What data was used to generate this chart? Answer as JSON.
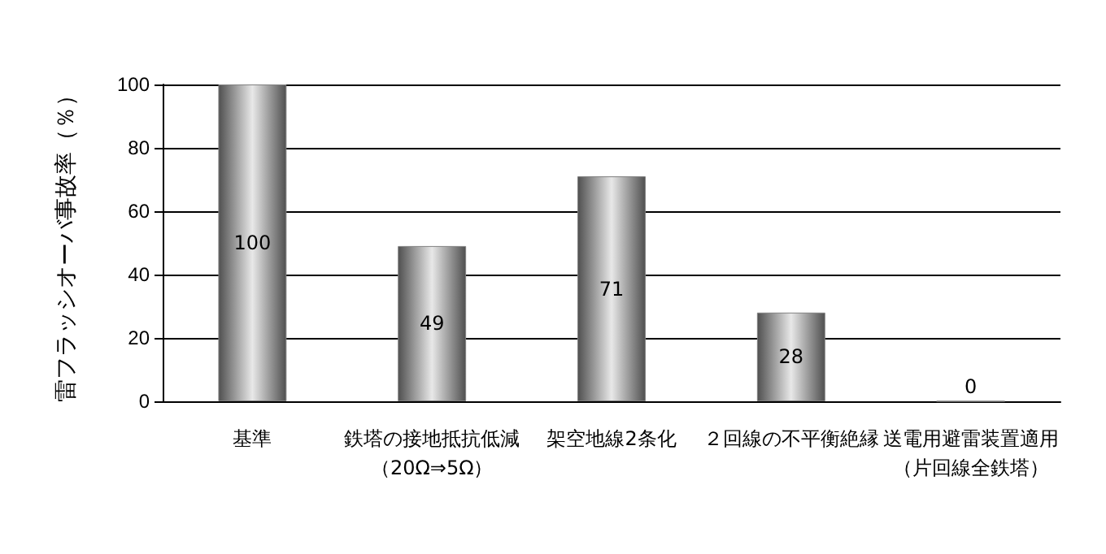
{
  "chart_data": {
    "type": "bar",
    "ylabel": "雷フラッシオーバ事故率（％）",
    "categories": [
      "基準",
      "鉄塔の接地抵抗低減（20Ω⇒5Ω）",
      "架空地線2条化",
      "２回線の不平衡絶縁",
      "送電用避雷装置適用（片回線全鉄塔）"
    ],
    "values": [
      100,
      49,
      71,
      28,
      0
    ],
    "color": "#808080",
    "ylim": [
      0,
      100
    ],
    "yticks": [
      0,
      20,
      40,
      60,
      80,
      100
    ],
    "grid": "y",
    "data_labels": true
  }
}
